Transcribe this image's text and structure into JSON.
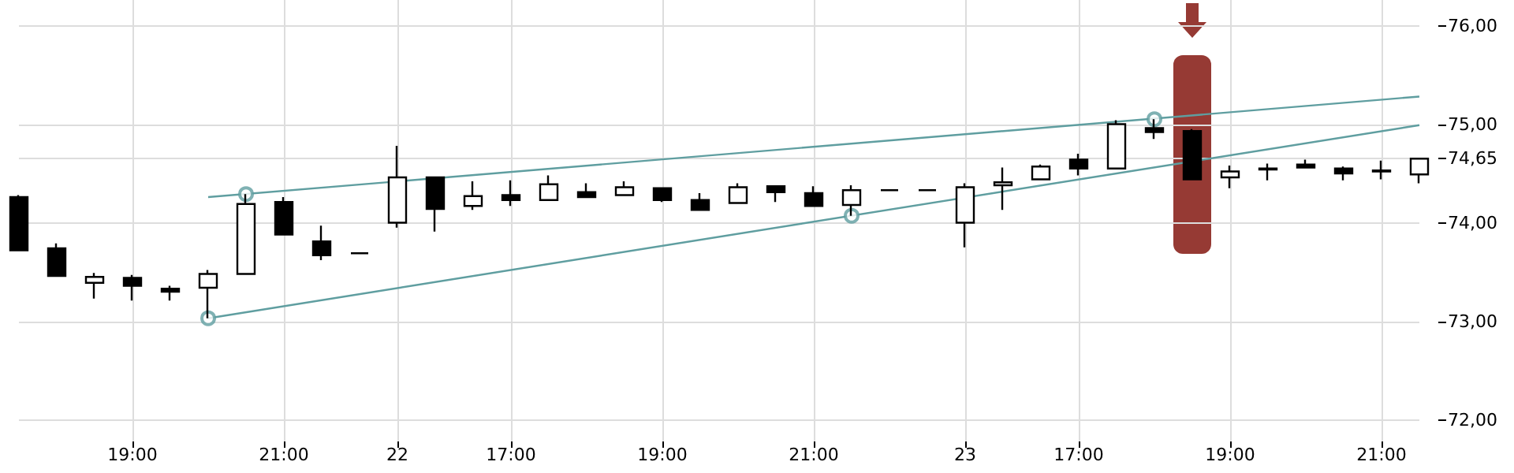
{
  "chart_data": {
    "type": "candlestick",
    "categories": [
      null,
      null,
      null,
      "19:00",
      null,
      null,
      null,
      "21:00",
      null,
      null,
      "22",
      null,
      null,
      "17:00",
      null,
      null,
      null,
      "19:00",
      null,
      null,
      null,
      "21:00",
      null,
      null,
      null,
      "23",
      null,
      null,
      "17:00",
      null,
      null,
      null,
      "19:00",
      null,
      null,
      null,
      "21:00",
      null
    ],
    "ohlc": [
      [
        74.26,
        74.28,
        73.72,
        73.72
      ],
      [
        73.74,
        73.79,
        73.46,
        73.46
      ],
      [
        73.39,
        73.49,
        73.23,
        73.45
      ],
      [
        73.44,
        73.47,
        73.21,
        73.36
      ],
      [
        73.33,
        73.36,
        73.21,
        73.3
      ],
      [
        73.34,
        73.52,
        73.03,
        73.48
      ],
      [
        73.48,
        74.29,
        73.48,
        74.19
      ],
      [
        74.21,
        74.26,
        73.88,
        73.88
      ],
      [
        73.81,
        73.97,
        73.62,
        73.67
      ],
      [
        73.69,
        73.69,
        73.69,
        73.69
      ],
      [
        74.0,
        74.78,
        73.95,
        74.46
      ],
      [
        74.46,
        74.46,
        73.91,
        74.14
      ],
      [
        74.17,
        74.42,
        74.13,
        74.27
      ],
      [
        74.28,
        74.43,
        74.17,
        74.23
      ],
      [
        74.23,
        74.48,
        74.23,
        74.39
      ],
      [
        74.31,
        74.4,
        74.26,
        74.26
      ],
      [
        74.28,
        74.42,
        74.28,
        74.36
      ],
      [
        74.35,
        74.35,
        74.21,
        74.23
      ],
      [
        74.23,
        74.3,
        74.13,
        74.13
      ],
      [
        74.2,
        74.4,
        74.2,
        74.36
      ],
      [
        74.37,
        74.37,
        74.21,
        74.31
      ],
      [
        74.3,
        74.37,
        74.17,
        74.17
      ],
      [
        74.18,
        74.38,
        74.07,
        74.33
      ],
      [
        74.33,
        74.33,
        74.33,
        74.33
      ],
      [
        74.33,
        74.33,
        74.33,
        74.33
      ],
      [
        74.0,
        74.4,
        73.75,
        74.36
      ],
      [
        74.38,
        74.56,
        74.13,
        74.41
      ],
      [
        74.44,
        74.59,
        74.44,
        74.57
      ],
      [
        74.64,
        74.7,
        74.48,
        74.55
      ],
      [
        74.55,
        75.04,
        74.55,
        75.0
      ],
      [
        74.96,
        75.05,
        74.85,
        74.92
      ],
      [
        74.93,
        74.95,
        74.44,
        74.44
      ],
      [
        74.46,
        74.58,
        74.35,
        74.52
      ],
      [
        74.54,
        74.6,
        74.43,
        74.55
      ],
      [
        74.59,
        74.64,
        74.56,
        74.56
      ],
      [
        74.55,
        74.57,
        74.43,
        74.5
      ],
      [
        74.52,
        74.63,
        74.44,
        74.53
      ],
      [
        74.49,
        74.65,
        74.4,
        74.65
      ]
    ],
    "series": [
      {
        "type": "line",
        "color": "#5f9ea0",
        "marker": "none",
        "values": [
          null,
          null,
          null,
          null,
          null,
          74.26,
          null,
          null,
          null,
          null,
          null,
          null,
          null,
          null,
          null,
          null,
          null,
          null,
          null,
          null,
          null,
          null,
          null,
          null,
          null,
          null,
          null,
          null,
          null,
          null,
          null,
          null,
          null,
          null,
          null,
          null,
          null,
          75.28
        ]
      },
      {
        "type": "line",
        "color": "#5f9ea0",
        "marker": "none",
        "values": [
          null,
          null,
          null,
          null,
          null,
          73.03,
          null,
          null,
          null,
          null,
          null,
          null,
          null,
          null,
          null,
          null,
          null,
          null,
          null,
          null,
          null,
          null,
          null,
          null,
          null,
          null,
          null,
          null,
          null,
          null,
          null,
          null,
          null,
          null,
          null,
          null,
          null,
          74.99
        ]
      },
      {
        "type": "scatter",
        "color": "#5f9ea0",
        "marker": "circle",
        "values": [
          null,
          null,
          null,
          null,
          null,
          73.03,
          74.29,
          null,
          null,
          null,
          null,
          null,
          null,
          null,
          null,
          null,
          null,
          null,
          null,
          null,
          null,
          null,
          74.07,
          null,
          null,
          null,
          null,
          null,
          null,
          null,
          75.05,
          null,
          null,
          null,
          null,
          null,
          null,
          null
        ]
      }
    ],
    "ylim": [
      71.78,
      76.26
    ],
    "yticks": [
      {
        "value": 72,
        "label": "72,00"
      },
      {
        "value": 73,
        "label": "73,00"
      },
      {
        "value": 74,
        "label": "74,00"
      },
      {
        "value": 74.65,
        "label": "74,65"
      },
      {
        "value": 75,
        "label": "75,00"
      },
      {
        "value": 76,
        "label": "76,00"
      }
    ],
    "grid": true
  }
}
